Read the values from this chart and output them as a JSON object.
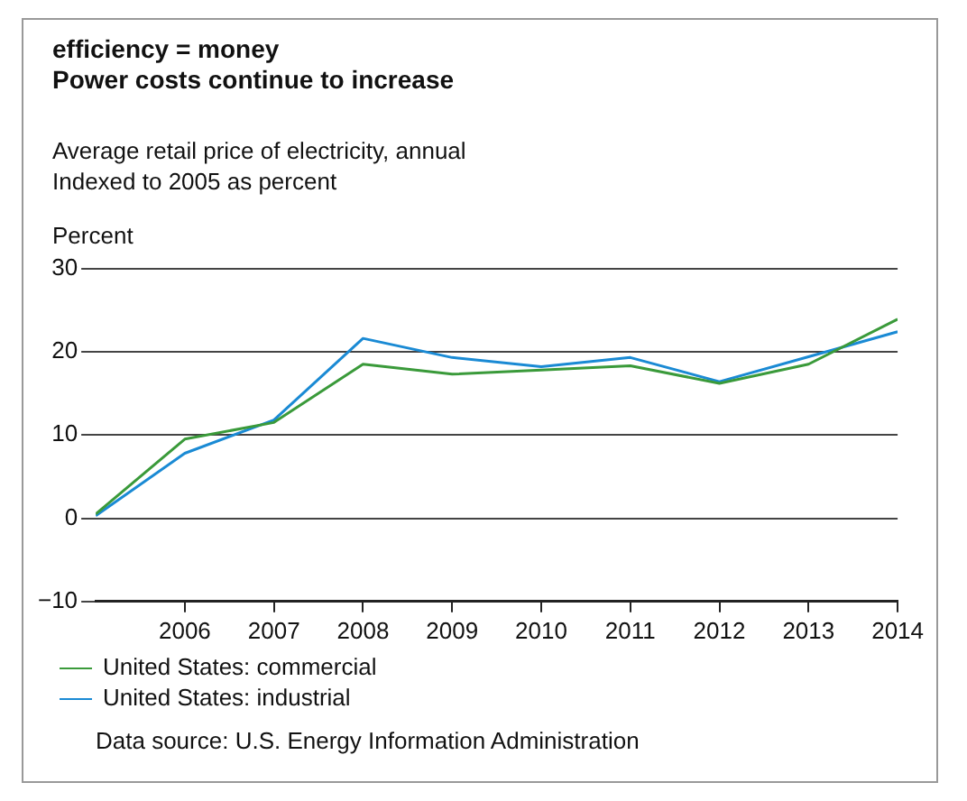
{
  "chart_data": {
    "type": "line",
    "title": "efficiency = money\nPower costs continue to increase",
    "subtitle": "Average retail price of electricity, annual\nIndexed to 2005 as percent",
    "ylabel": "Percent",
    "x": [
      2005,
      2006,
      2007,
      2008,
      2009,
      2010,
      2011,
      2012,
      2013,
      2014
    ],
    "series": [
      {
        "name": "United States: commercial",
        "color": "#3a9a3a",
        "values": [
          0.5,
          9.5,
          11.5,
          18.5,
          17.3,
          17.8,
          18.3,
          16.2,
          18.5,
          23.9
        ]
      },
      {
        "name": "United States: industrial",
        "color": "#1a8ad4",
        "values": [
          0.3,
          7.8,
          11.8,
          21.6,
          19.3,
          18.2,
          19.3,
          16.4,
          19.4,
          22.4
        ]
      }
    ],
    "xlim": [
      2005,
      2014
    ],
    "xticks": [
      2006,
      2007,
      2008,
      2009,
      2010,
      2011,
      2012,
      2013,
      2014
    ],
    "ylim": [
      -10,
      30
    ],
    "yticks": [
      {
        "value": -10,
        "label": "−10"
      },
      0,
      10,
      20,
      30
    ],
    "grid": "y",
    "legend": "bottom left",
    "marker": "none",
    "line_style": "solid",
    "annotations": [
      "Data source: U.S. Energy Information Administration"
    ]
  }
}
